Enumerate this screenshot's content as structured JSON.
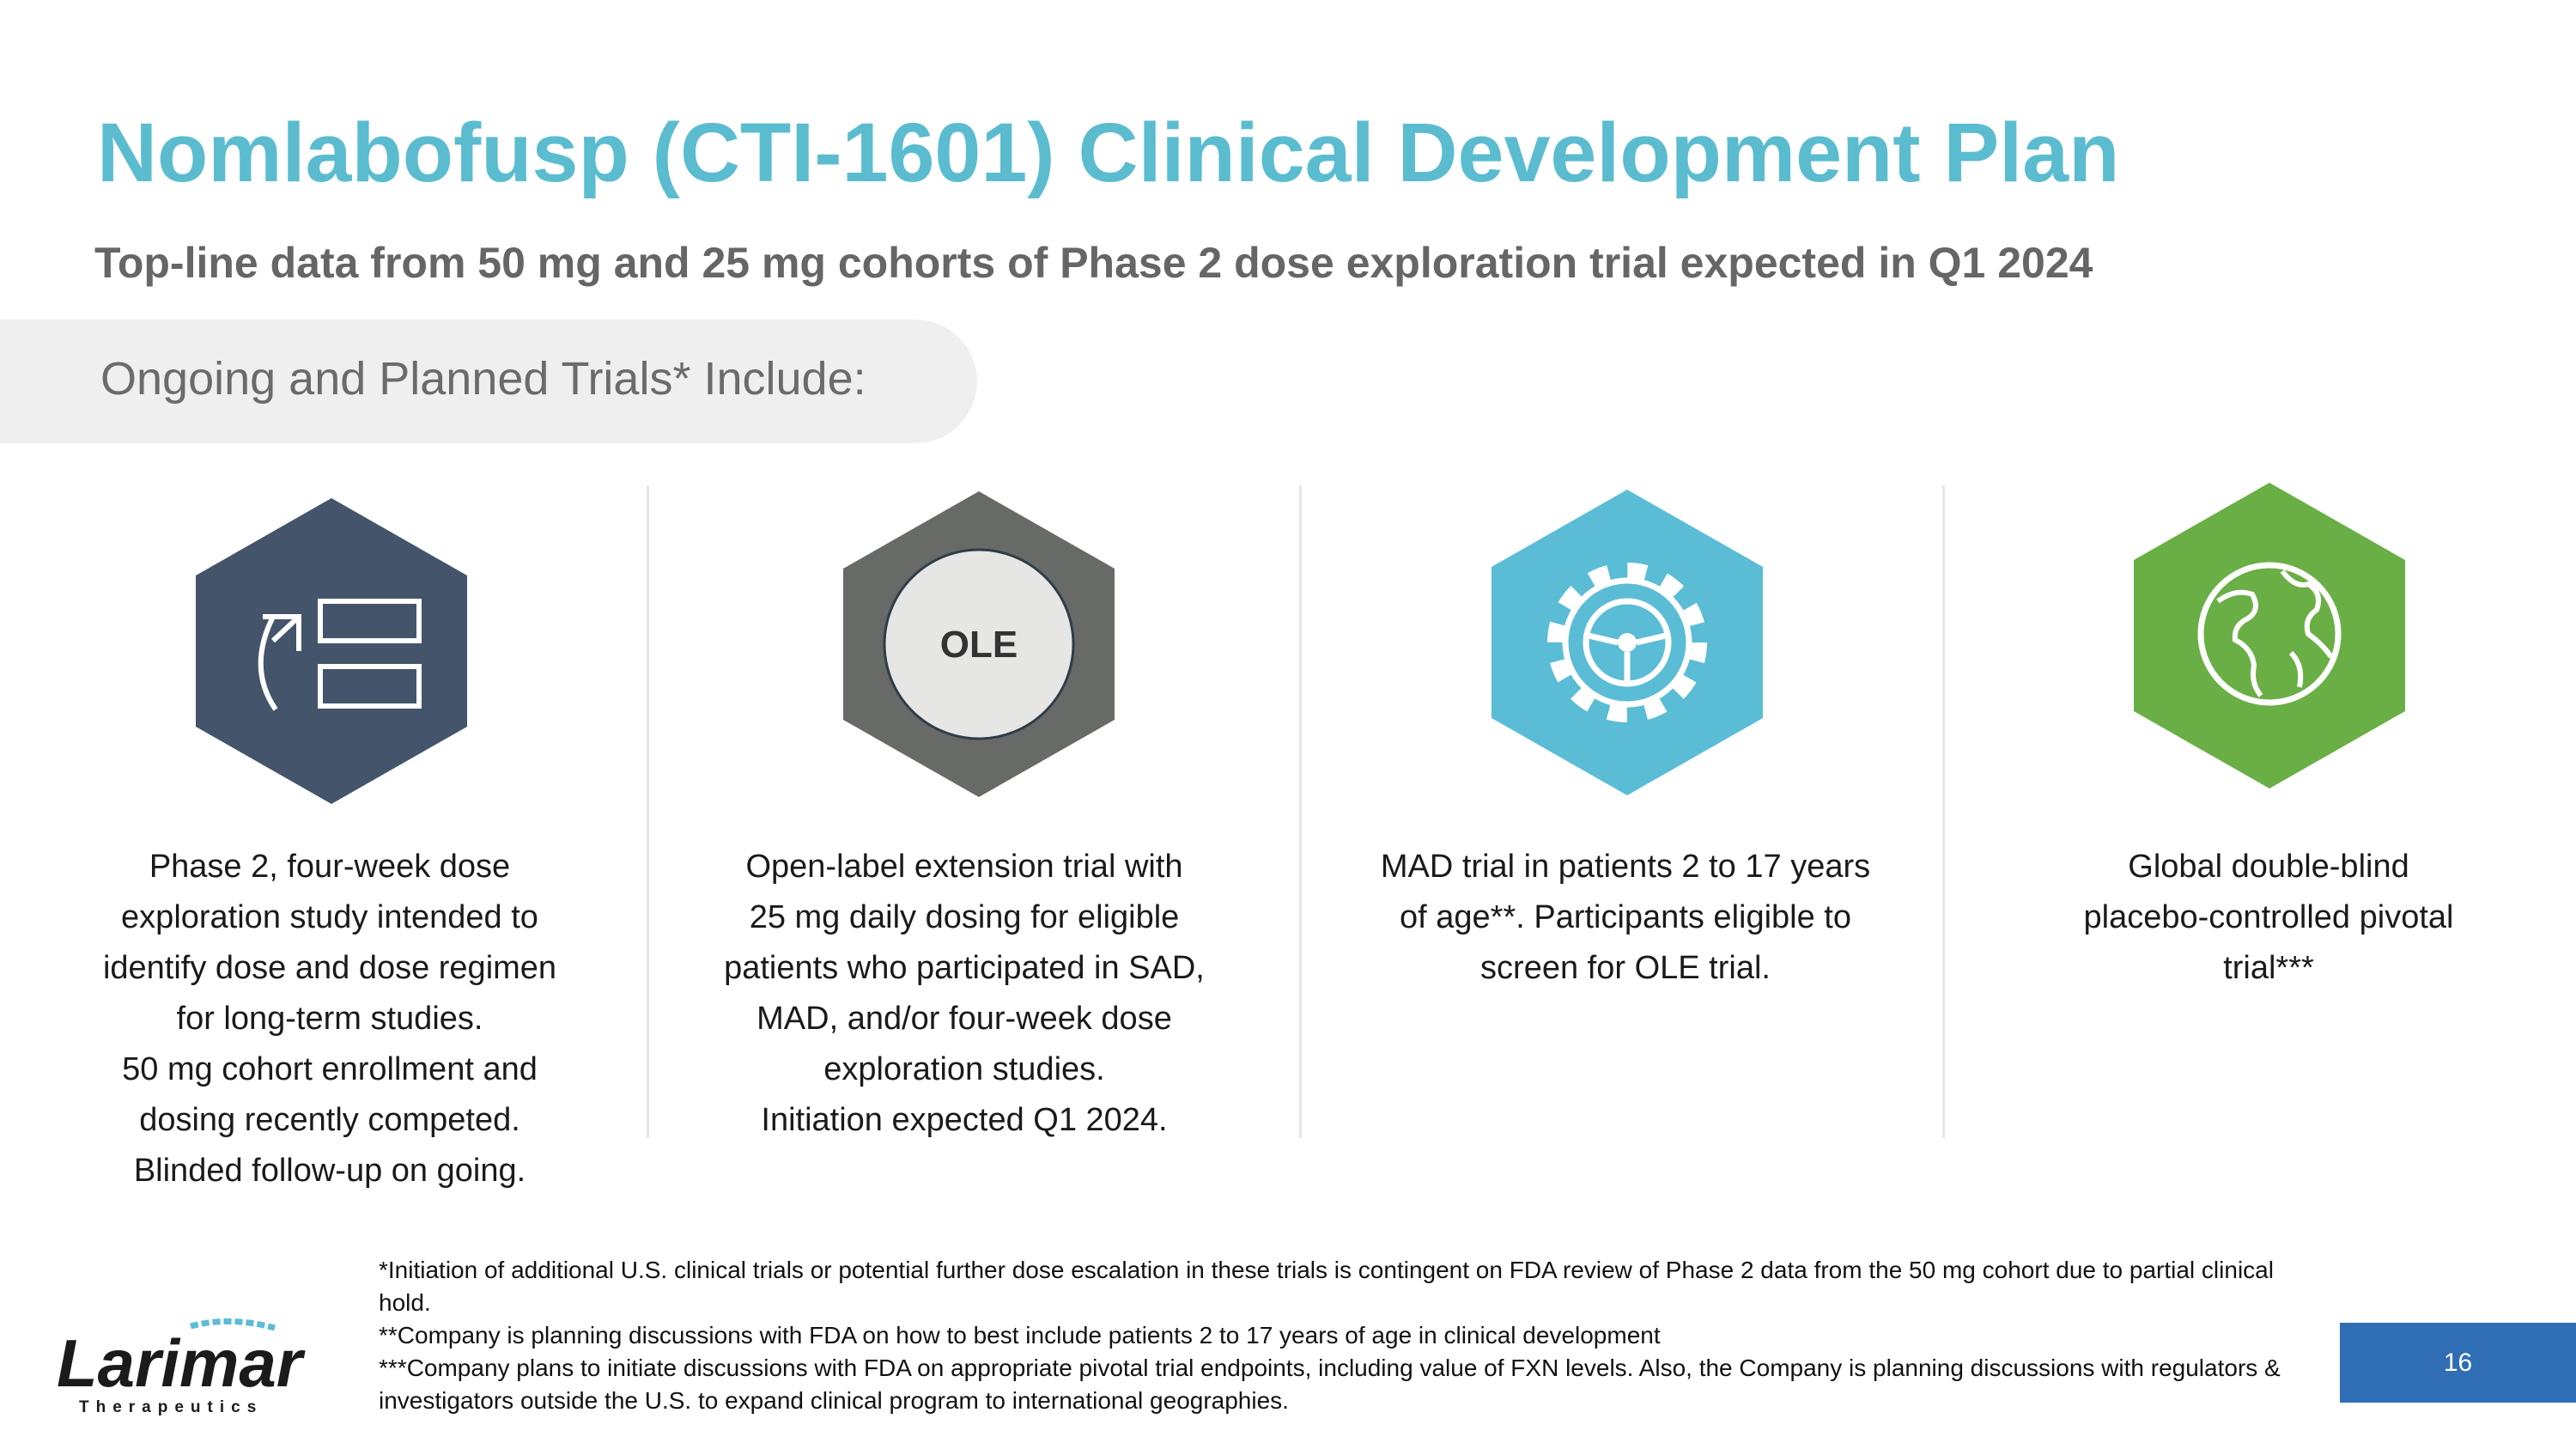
{
  "slide": {
    "title": "Nomlabofusp (CTI-1601) Clinical Development Plan",
    "subtitle": "Top-line data from 50 mg and 25 mg cohorts of Phase 2 dose exploration trial expected in Q1 2024",
    "section_label": "Ongoing and Planned Trials* Include:"
  },
  "colors": {
    "title": "#5bbcd0",
    "hex_1": "#44546a",
    "hex_2": "#676a66",
    "hex_3": "#5bbcd6",
    "hex_4": "#6aaf45",
    "page_badge": "#2f6eb4"
  },
  "trials": [
    {
      "icon": "dose-exploration-icon",
      "lines": [
        "Phase 2, four-week dose",
        "exploration study intended to",
        "identify dose and dose regimen",
        "for long-term studies.",
        "50 mg cohort enrollment and",
        "dosing recently competed.",
        "Blinded follow-up on going."
      ]
    },
    {
      "icon": "ole-icon",
      "badge_text": "OLE",
      "lines": [
        "Open-label extension trial with",
        "25 mg daily dosing for eligible",
        "patients who participated in SAD,",
        "MAD, and/or four-week dose",
        "exploration studies.",
        "Initiation expected Q1 2024."
      ]
    },
    {
      "icon": "gear-steering-icon",
      "lines": [
        "MAD trial in patients 2 to 17 years",
        "of age**. Participants eligible to",
        "screen for OLE trial."
      ]
    },
    {
      "icon": "globe-icon",
      "lines": [
        "Global double-blind",
        "placebo-controlled pivotal",
        "trial***"
      ]
    }
  ],
  "footnotes": [
    "*Initiation of additional U.S. clinical trials or potential further dose escalation in these trials is contingent on FDA review of Phase 2 data from the 50 mg cohort due to partial clinical hold.",
    "**Company is planning discussions with FDA on how to best include patients 2 to 17 years of age in clinical development",
    "***Company plans to initiate discussions with FDA on appropriate pivotal trial endpoints, including value of FXN levels. Also, the Company is planning discussions with regulators & investigators outside the U.S. to expand clinical program to international geographies."
  ],
  "logo": {
    "name": "Larimar",
    "tagline": "Therapeutics"
  },
  "page_number": "16"
}
